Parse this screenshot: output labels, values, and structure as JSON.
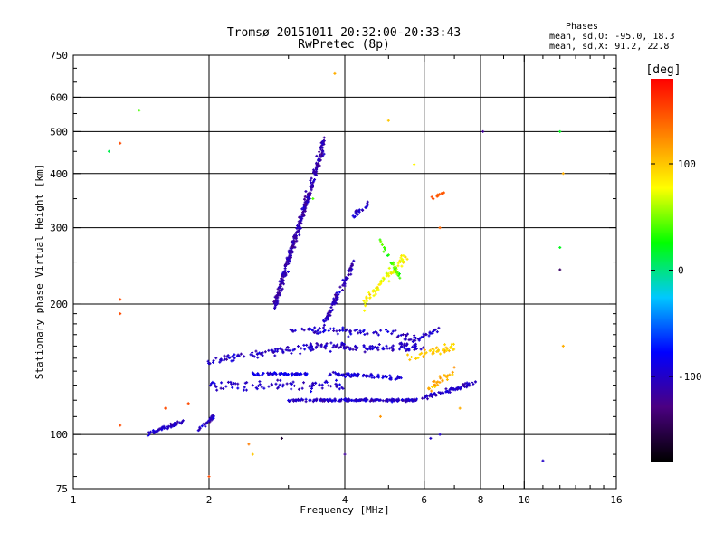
{
  "chart_data": {
    "type": "scatter",
    "title": "Tromsø 20151011 20:32:00-20:33:43",
    "subtitle": "RwPretec (8p)",
    "xlabel": "Frequency [MHz]",
    "ylabel": "Stationary phase Virtual Height [km]",
    "xscale": "log",
    "yscale": "log",
    "xlim": [
      1,
      16
    ],
    "ylim": [
      75,
      750
    ],
    "grid": true,
    "xticks": [
      1,
      2,
      4,
      6,
      8,
      10,
      16
    ],
    "xtick_labels": [
      "1",
      "2",
      "4",
      "6",
      "8",
      "10",
      "16"
    ],
    "yticks": [
      75,
      100,
      200,
      300,
      400,
      500,
      600,
      750
    ],
    "ytick_labels": [
      "75",
      "100",
      "200",
      "300",
      "400",
      "500",
      "600",
      "750"
    ],
    "legend": {
      "heading": "Phases",
      "line1": "mean, sd,O: -95.0, 18.3",
      "line2": "mean, sd,X:  91.2, 22.8"
    },
    "colorbar": {
      "label": "[deg]",
      "range": [
        -180,
        180
      ],
      "ticks": [
        100,
        0,
        -100
      ],
      "tick_labels": [
        "100",
        "0",
        "-100"
      ],
      "colors": [
        "#000000",
        "#4b0082",
        "#0000ff",
        "#00c8ff",
        "#00ff00",
        "#ffff00",
        "#ff8000",
        "#ff0000"
      ]
    },
    "series": [
      {
        "traces": [
          {
            "x0": 1.45,
            "x1": 1.75,
            "y0": 100,
            "y1": 107,
            "n": 60,
            "phase": -100,
            "spread": 0.015
          },
          {
            "x0": 1.9,
            "x1": 2.05,
            "y0": 103,
            "y1": 110,
            "n": 25,
            "phase": -100,
            "spread": 0.02
          },
          {
            "x0": 2.0,
            "x1": 3.5,
            "y0": 148,
            "y1": 160,
            "n": 90,
            "phase": -100,
            "spread": 0.03
          },
          {
            "x0": 2.5,
            "x1": 3.3,
            "y0": 138,
            "y1": 138,
            "n": 60,
            "phase": -90,
            "spread": 0.01
          },
          {
            "x0": 3.0,
            "x1": 5.8,
            "y0": 120,
            "y1": 120,
            "n": 180,
            "phase": -100,
            "spread": 0.01
          },
          {
            "x0": 5.8,
            "x1": 7.8,
            "y0": 120,
            "y1": 132,
            "n": 70,
            "phase": -100,
            "spread": 0.015
          },
          {
            "x0": 2.0,
            "x1": 4.0,
            "y0": 130,
            "y1": 130,
            "n": 80,
            "phase": -100,
            "spread": 0.04
          },
          {
            "x0": 3.7,
            "x1": 5.4,
            "y0": 138,
            "y1": 135,
            "n": 80,
            "phase": -95,
            "spread": 0.015
          },
          {
            "x0": 3.5,
            "x1": 6.0,
            "y0": 160,
            "y1": 158,
            "n": 90,
            "phase": -100,
            "spread": 0.03
          },
          {
            "x0": 3.0,
            "x1": 5.5,
            "y0": 175,
            "y1": 170,
            "n": 70,
            "phase": -100,
            "spread": 0.03
          },
          {
            "x0": 2.8,
            "x1": 3.6,
            "y0": 200,
            "y1": 470,
            "n": 320,
            "phase": -110,
            "spread": 0.06
          },
          {
            "x0": 3.6,
            "x1": 4.2,
            "y0": 180,
            "y1": 250,
            "n": 90,
            "phase": -105,
            "spread": 0.04
          },
          {
            "x0": 4.2,
            "x1": 4.5,
            "y0": 320,
            "y1": 340,
            "n": 25,
            "phase": -100,
            "spread": 0.02
          },
          {
            "x0": 4.4,
            "x1": 5.5,
            "y0": 200,
            "y1": 260,
            "n": 70,
            "phase": 80,
            "spread": 0.04
          },
          {
            "x0": 4.8,
            "x1": 5.3,
            "y0": 280,
            "y1": 230,
            "n": 25,
            "phase": 40,
            "spread": 0.03
          },
          {
            "x0": 5.5,
            "x1": 7.0,
            "y0": 150,
            "y1": 160,
            "n": 45,
            "phase": 100,
            "spread": 0.03
          },
          {
            "x0": 6.0,
            "x1": 7.0,
            "y0": 125,
            "y1": 140,
            "n": 30,
            "phase": 110,
            "spread": 0.03
          },
          {
            "x0": 6.2,
            "x1": 6.8,
            "y0": 350,
            "y1": 365,
            "n": 12,
            "phase": 150,
            "spread": 0.01
          },
          {
            "x0": 5.2,
            "x1": 6.5,
            "y0": 160,
            "y1": 175,
            "n": 40,
            "phase": -100,
            "spread": 0.03
          }
        ],
        "scattered": [
          {
            "x": 1.2,
            "y": 450,
            "phase": 10
          },
          {
            "x": 1.27,
            "y": 470,
            "phase": 150
          },
          {
            "x": 1.27,
            "y": 190,
            "phase": 150
          },
          {
            "x": 1.27,
            "y": 105,
            "phase": 150
          },
          {
            "x": 1.4,
            "y": 560,
            "phase": 40
          },
          {
            "x": 1.27,
            "y": 205,
            "phase": 150
          },
          {
            "x": 1.6,
            "y": 115,
            "phase": 150
          },
          {
            "x": 1.8,
            "y": 118,
            "phase": 150
          },
          {
            "x": 2.0,
            "y": 80,
            "phase": 150
          },
          {
            "x": 2.45,
            "y": 95,
            "phase": 130
          },
          {
            "x": 2.5,
            "y": 90,
            "phase": 100
          },
          {
            "x": 2.9,
            "y": 98,
            "phase": -160
          },
          {
            "x": 3.4,
            "y": 350,
            "phase": 40
          },
          {
            "x": 3.8,
            "y": 680,
            "phase": 110
          },
          {
            "x": 4.0,
            "y": 90,
            "phase": -120
          },
          {
            "x": 5.0,
            "y": 530,
            "phase": 100
          },
          {
            "x": 5.7,
            "y": 420,
            "phase": 80
          },
          {
            "x": 6.5,
            "y": 300,
            "phase": 140
          },
          {
            "x": 7.2,
            "y": 115,
            "phase": 110
          },
          {
            "x": 8.1,
            "y": 500,
            "phase": -120
          },
          {
            "x": 11.0,
            "y": 87,
            "phase": -100
          },
          {
            "x": 12.0,
            "y": 500,
            "phase": 20
          },
          {
            "x": 12.0,
            "y": 270,
            "phase": 20
          },
          {
            "x": 12.0,
            "y": 240,
            "phase": -140
          },
          {
            "x": 12.2,
            "y": 400,
            "phase": 110
          },
          {
            "x": 12.2,
            "y": 160,
            "phase": 110
          },
          {
            "x": 6.2,
            "y": 98,
            "phase": -100
          },
          {
            "x": 6.5,
            "y": 100,
            "phase": -100
          },
          {
            "x": 4.8,
            "y": 110,
            "phase": 120
          }
        ]
      }
    ]
  }
}
